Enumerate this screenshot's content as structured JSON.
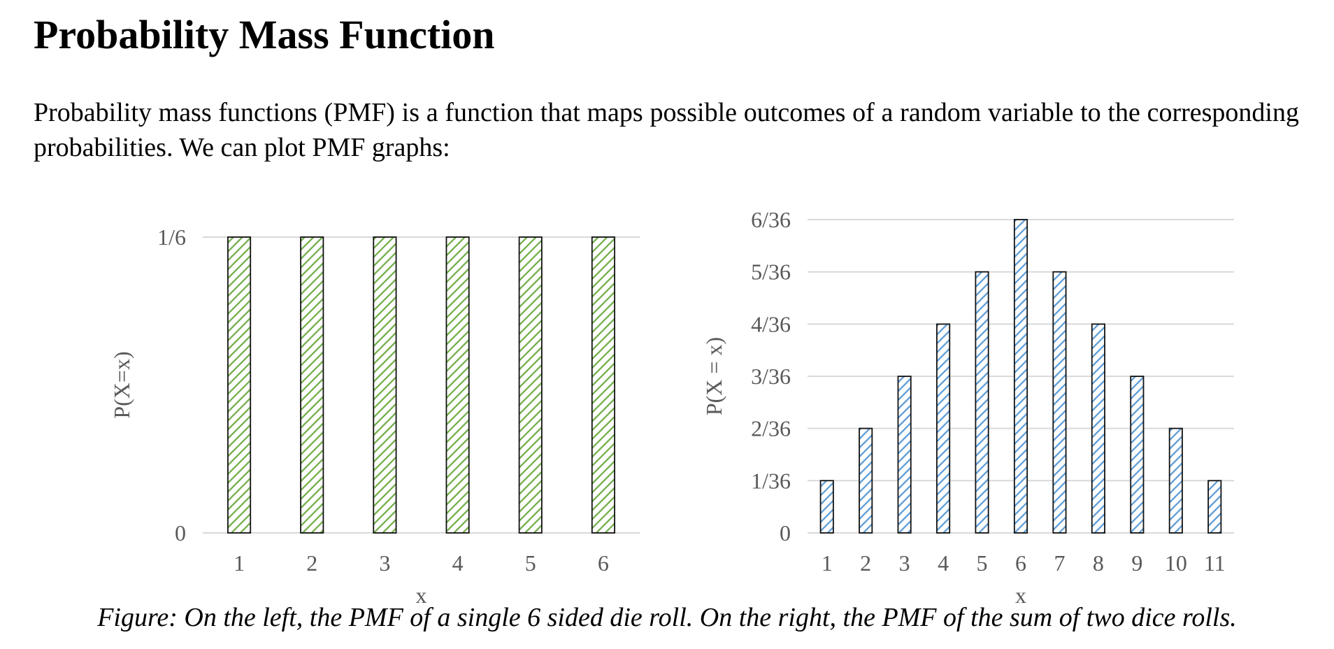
{
  "page": {
    "title": "Probability Mass Function",
    "intro": "Probability mass functions (PMF) is a function that maps possible outcomes of a random variable to the corresponding probabilities. We can plot PMF graphs:",
    "caption": "Figure: On the left, the PMF of a single 6 sided die roll. On the right, the PMF of the sum of two dice rolls."
  },
  "chart_data": [
    {
      "type": "bar",
      "title": "",
      "xlabel": "x",
      "ylabel": "P(X=x)",
      "categories": [
        "1",
        "2",
        "3",
        "4",
        "5",
        "6"
      ],
      "values": [
        0.1667,
        0.1667,
        0.1667,
        0.1667,
        0.1667,
        0.1667
      ],
      "ylim": [
        0,
        0.1667
      ],
      "yticks": [
        0,
        0.1667
      ],
      "ytick_labels": [
        "0",
        "1/6"
      ],
      "grid": true,
      "legend": "none",
      "bar_fill": "#70ad47",
      "bar_pattern": "diagonal-hatch"
    },
    {
      "type": "bar",
      "title": "",
      "xlabel": "x",
      "ylabel": "P(X = x)",
      "categories": [
        "1",
        "2",
        "3",
        "4",
        "5",
        "6",
        "7",
        "8",
        "9",
        "10",
        "11"
      ],
      "values": [
        0.0278,
        0.0556,
        0.0833,
        0.1111,
        0.1389,
        0.1667,
        0.1389,
        0.1111,
        0.0833,
        0.0556,
        0.0278
      ],
      "ylim": [
        0,
        0.1667
      ],
      "yticks": [
        0,
        0.0278,
        0.0556,
        0.0833,
        0.1111,
        0.1389,
        0.1667
      ],
      "ytick_labels": [
        "0",
        "1/36",
        "2/36",
        "3/36",
        "4/36",
        "5/36",
        "6/36"
      ],
      "grid": true,
      "legend": "none",
      "bar_fill": "#5b9bd5",
      "bar_pattern": "diagonal-hatch"
    }
  ]
}
